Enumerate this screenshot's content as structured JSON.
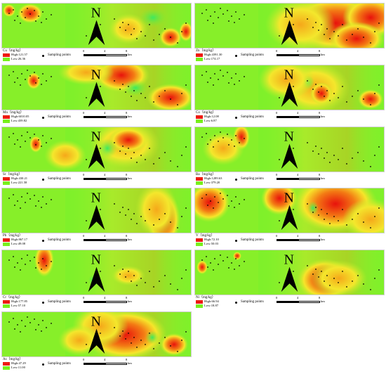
{
  "legend_common": {
    "sampling_points_label": "Sampling points",
    "scale_0": "0",
    "scale_4": "4",
    "scale_8": "8",
    "scale_unit": "km"
  },
  "colors": {
    "high": "#ee1a10",
    "mid": "#f7e52a",
    "low": "#78f01c"
  },
  "panels": [
    {
      "element": "Cu（mg/kg）",
      "high": "High:121.57",
      "low": "Low:26.36"
    },
    {
      "element": "Zn（mg/kg）",
      "high": "High:4391.30",
      "low": "Low:174.17"
    },
    {
      "element": "Mn（mg/kg）",
      "high": "High:6010.05",
      "low": "Low:439.82"
    },
    {
      "element": "Co（mg/kg）",
      "high": "High:12.08",
      "low": "Low:6.87"
    },
    {
      "element": "Sr（mg/kg）",
      "high": "High:430.21",
      "low": "Low:221.58"
    },
    {
      "element": "Ba（mg/kg）",
      "high": "High:1289.63",
      "low": "Low:379.20"
    },
    {
      "element": "Pb（mg/kg）",
      "high": "High:867.17",
      "low": "Low:49.08"
    },
    {
      "element": "V（mg/kg）",
      "high": "High:72.10",
      "low": "Low:50.03"
    },
    {
      "element": "Cr（mg/kg）",
      "high": "High:177.85",
      "low": "Low:57.10"
    },
    {
      "element": "Ni（mg/kg）",
      "high": "High:66.94",
      "low": "Low:18.87"
    },
    {
      "element": "As（mg/kg）",
      "high": "High:47.29",
      "low": "Low:11.00"
    }
  ]
}
